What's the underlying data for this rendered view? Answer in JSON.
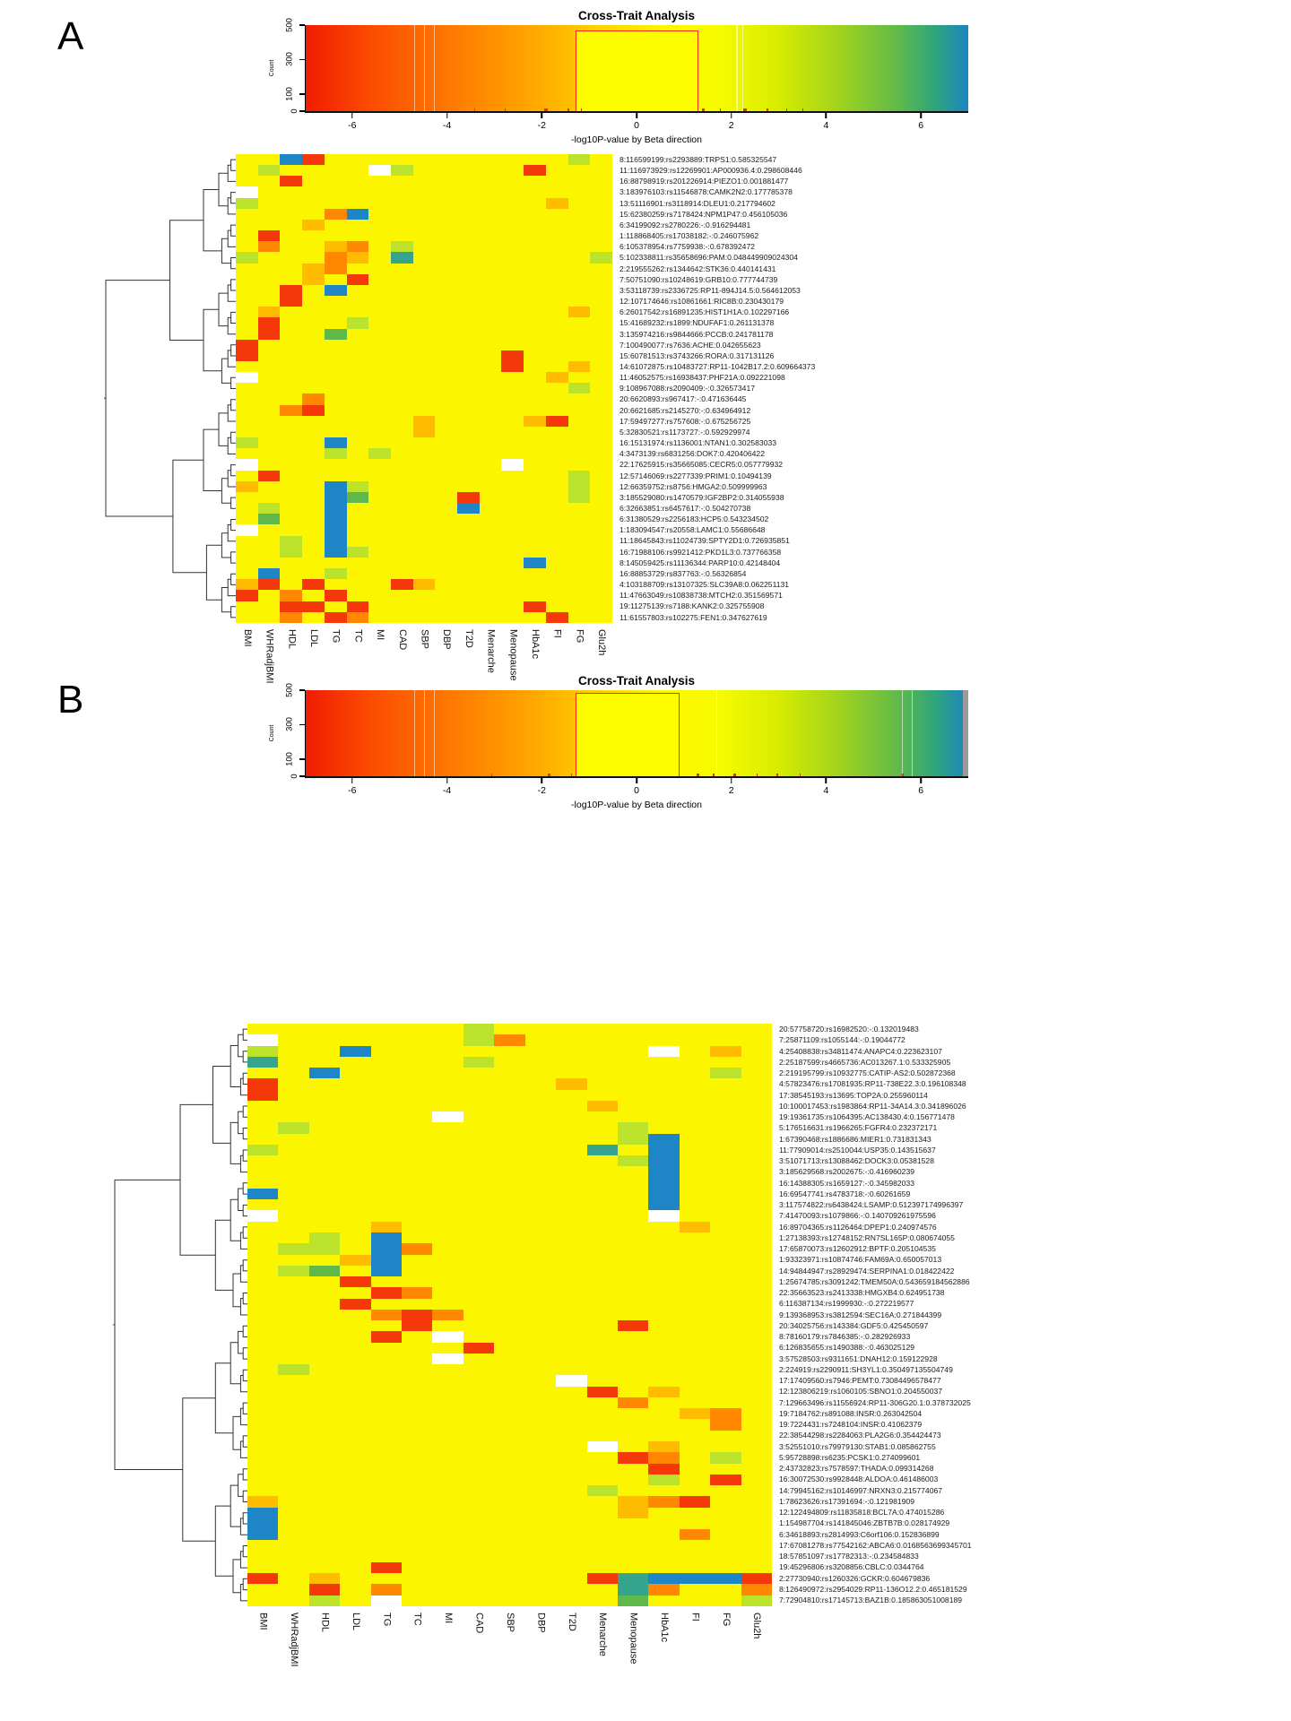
{
  "palette": {
    "Y": "#FBF600",
    "g": "#BCE32C",
    "G": "#5FB94A",
    "t": "#35A48C",
    "B": "#1E86C6",
    "o": "#FFBB00",
    "O": "#FF8800",
    "R": "#F5380A",
    "W": "#FFFFFF"
  },
  "chart_data": [
    {
      "type": "heatmap",
      "panel_label": "A",
      "title": "Cross-Trait Analysis",
      "colorbar": {
        "xlabel": "-log10P-value by Beta direction",
        "ylabel": "Count",
        "yticks": [
          0,
          100,
          300,
          500
        ],
        "xticks": [
          -6,
          -4,
          -2,
          0,
          2,
          4,
          6
        ],
        "xrange": [
          -7,
          7
        ],
        "highlight_box": {
          "x0": -1.3,
          "x1": 1.3,
          "count": 480
        },
        "gradient_hex": [
          "#F01C00",
          "#FF7A00",
          "#FFD400",
          "#FBF600",
          "#D9ED00",
          "#A4D41C",
          "#64BB47",
          "#2FA47C",
          "#1B85C3"
        ]
      },
      "legend_note": "cell colors code -log10P-value by Beta direction: red/orange = negative, yellow = near zero, green/teal/blue = positive, white = missing",
      "columns": [
        "BMI",
        "WHRadjBMI",
        "HDL",
        "LDL",
        "TG",
        "TC",
        "MI",
        "CAD",
        "SBP",
        "DBP",
        "T2D",
        "Menarche",
        "Menopause",
        "HbA1c",
        "FI",
        "FG",
        "Glu2h"
      ],
      "rows": [
        "8:116599199:rs2293889:TRPS1:0.585325547",
        "11:116973929:rs12269901:AP000936.4:0.298608446",
        "16:88798919:rs201226914:PIEZO1:0.001881477",
        "3:183976103:rs11546878:CAMK2N2:0.177785378",
        "13:51116901:rs3118914:DLEU1:0.217794602",
        "15:62380259:rs7178424:NPM1P47:0.456105036",
        "6:34199092:rs2780226:-:0.916294481",
        "1:118868405:rs17038182:-:0.246075962",
        "6:105378954:rs7759938:-:0.678392472",
        "5:102338811:rs35658696:PAM:0.048449909024304",
        "2:219555262:rs1344642:STK36:0.440141431",
        "7:50751090:rs10248619:GRB10:0.777744739",
        "3:53118739:rs2336725:RP11-894J14.5:0.564612053",
        "12:107174646:rs10861661:RIC8B:0.230430179",
        "6:26017542:rs16891235:HIST1H1A:0.102297166",
        "15:41689232:rs1899:NDUFAF1:0.261131378",
        "3:135974216:rs9844666:PCCB:0.241781178",
        "7:100490077:rs7636:ACHE:0.042655623",
        "15:60781513:rs3743266:RORA:0.317131126",
        "14:61072875:rs10483727:RP11-1042B17.2:0.609664373",
        "11:46052575:rs16938437:PHF21A:0.092221098",
        "9:108967088:rs2090409:-:0.326573417",
        "20:6620893:rs967417:-:0.471636445",
        "20:6621685:rs2145270:-:0.634964912",
        "17:59497277:rs757608:-:0.675256725",
        "5:32830521:rs1173727:-:0.592929974",
        "16:15131974:rs1136001:NTAN1:0.302583033",
        "4:3473139:rs6831256:DOK7:0.420406422",
        "22:17625915:rs35665085:CECR5:0.057779932",
        "12:57146069:rs2277339:PRIM1:0.10494139",
        "12:66359752:rs8756:HMGA2:0.509999963",
        "3:185529080:rs1470579:IGF2BP2:0.314055938",
        "6:32663851:rs6457617:-:0.504270738",
        "6:31380529:rs2256183:HCP5:0.543234502",
        "1:183094547:rs20558:LAMC1:0.55686648",
        "11:18645843:rs11024739:SPTY2D1:0.726935851",
        "16:71988106:rs9921412:PKD1L3:0.737766358",
        "8:145059425:rs11136344:PARP10:0.42148404",
        "16:88853729:rs837763:-:0.56326854",
        "4:103188709:rs13107325:SLC39A8:0.062251131",
        "11:47663049:rs10838738:MTCH2:0.351569571",
        "19:11275139:rs7188:KANK2:0.325755908",
        "11:61557803:rs102275:FEN1:0.347627619"
      ],
      "matrix": [
        "YYBRYYYYYYYYYYYgY",
        "YgYYYYWgYYYYYRYYY",
        "YYRYYYYYYYYYYYYYY",
        "WYYYYYYYYYYYYYYYY",
        "gYYYYYYYYYYYYYoYY",
        "YYYYOBYYYYYYYYYYY",
        "YYYoYYYYYYYYYYYYY",
        "YRYYYYYYYYYYYYYYY",
        "YOYYoOYgYYYYYYYYY",
        "gYYYOoYtYYYYYYYYg",
        "YYYoOYYYYYYYYYYYY",
        "YYYoYRYYYYYYYYYYY",
        "YYRYBYYYYYYYYYYYY",
        "YYRYYYYYYYYYYYYYY",
        "YoYYYYYYYYYYYYYoY",
        "YRYYYgYYYYYYYYYYY",
        "YRYYGYYYYYYYYYYYY",
        "RYYYYYYYYYYYYYYYY",
        "RYYYYYYYYYYYRYYYY",
        "YYYYYYYYYYYYRYYoY",
        "WYYYYYYYYYYYYYoYY",
        "YYYYYYYYYYYYYYYgY",
        "YYYOYYYYYYYYYYYYY",
        "YYORYYYYYYYYYYYYY",
        "YYYYYYYYoYYYYoRYY",
        "YYYYYYYYoYYYYYYYY",
        "gYYYBYYYYYYYYYYYY",
        "YYYYgYgYYYYYYYYYY",
        "WYYYYYYYYYYYWYYYY",
        "YRYYYYYYYYYYYYYgY",
        "oYYYBgYYYYYYYYYgY",
        "YYYYBGYYYYRYYYYgY",
        "YgYYBYYYYYBYYYYYY",
        "YGYYBYYYYYYYYYYYY",
        "WYYYBYYYYYYYYYYYY",
        "YYgYBYYYYYYYYYYYY",
        "YYgYBgYYYYYYYYYYY",
        "YYYYYYYYYYYYYBYYY",
        "YBYYgYYYYYYYYYYYY",
        "oRYRYYYRoYYYYYYYY",
        "RYOYRYYYYYYYYYYYY",
        "YYRRYRYYYYYYYRYYY",
        "YYOYROYYYYYYYYRYY"
      ]
    },
    {
      "type": "heatmap",
      "panel_label": "B",
      "title": "Cross-Trait Analysis",
      "colorbar": {
        "xlabel": "-log10P-value by Beta direction",
        "ylabel": "Count",
        "yticks": [
          0,
          100,
          300,
          500
        ],
        "xticks": [
          -6,
          -4,
          -2,
          0,
          2,
          4,
          6
        ],
        "xrange": [
          -7,
          7
        ],
        "highlight_box": {
          "x0": -1.3,
          "x1": 0.9,
          "count": 530
        },
        "gradient_hex": [
          "#F01C00",
          "#FF7A00",
          "#FFD400",
          "#FBF600",
          "#D9ED00",
          "#A4D41C",
          "#64BB47",
          "#2FA47C",
          "#1B85C3"
        ]
      },
      "legend_note": "cell colors code -log10P-value by Beta direction: red/orange = negative, yellow = near zero, green/teal/blue = positive, white = missing",
      "columns": [
        "BMI",
        "WHRadjBMI",
        "HDL",
        "LDL",
        "TG",
        "TC",
        "MI",
        "CAD",
        "SBP",
        "DBP",
        "T2D",
        "Menarche",
        "Menopause",
        "HbA1c",
        "FI",
        "FG",
        "Glu2h"
      ],
      "rows": [
        "20:57758720:rs16982520:-:0.132019483",
        "7:25871109:rs1055144:-:0.19044772",
        "4:25408838:rs34811474:ANAPC4:0.223623107",
        "2:25187599:rs4665736:AC013267.1:0.533325905",
        "2:219195799:rs10932775:CATIP-AS2:0.502872368",
        "4:57823476:rs17081935:RP11-738E22.3:0.196108348",
        "17:38545193:rs13695:TOP2A:0.255960114",
        "10:100017453:rs1983864:RP11-34A14.3:0.341896026",
        "19:19361735:rs1064395:AC138430.4:0.156771478",
        "5:176516631:rs1966265:FGFR4:0.232372171",
        "1:67390468:rs1886686:MIER1:0.731831343",
        "11:77909014:rs2510044:USP35:0.143515637",
        "3:51071713:rs13088462:DOCK3:0.05381528",
        "3:185629568:rs2002675:-:0.416960239",
        "16:14388305:rs1659127:-:0.345982033",
        "16:69547741:rs4783718:-:0.60261659",
        "3:117574822:rs6438424:LSAMP:0.512397174996397",
        "7:41470093:rs1079866:-:0.140709261975596",
        "16:89704365:rs1126464:DPEP1:0.240974576",
        "1:27138393:rs12748152:RN7SL165P:0.080674055",
        "17:65870073:rs12602912:BPTF:0.205104535",
        "1:93323971:rs10874746:FAM69A:0.650057013",
        "14:94844947:rs28929474:SERPINA1:0.018422422",
        "1:25674785:rs3091242:TMEM50A:0.543659184562886",
        "22:35663523:rs2413338:HMGXB4:0.624951738",
        "6:116387134:rs1999930:-:0.272219577",
        "9:139368953:rs3812594:SEC16A:0.271844399",
        "20:34025756:rs143384:GDF5:0.425450597",
        "8:78160179:rs7846385:-:0.282926933",
        "6:126835655:rs1490388:-:0.463025129",
        "3:57528503:rs9311651:DNAH12:0.159122928",
        "2:224919:rs2290911:SH3YL1:0.350497135504749",
        "17:17409560:rs7946:PEMT:0.73084496578477",
        "12:123806219:rs1060105:SBNO1:0.204550037",
        "7:129663496:rs11556924:RP11-306G20.1:0.378732025",
        "19:7184762:rs891088:INSR:0.263042504",
        "19:7224431:rs7248104:INSR:0.41062379",
        "22:38544298:rs2284063:PLA2G6:0.354424473",
        "3:52551010:rs79979130:STAB1:0.085862755",
        "5:95728898:rs6235:PCSK1:0.274099601",
        "2:43732823:rs7578597:THADA:0.099314268",
        "16:30072530:rs9928448:ALDOA:0.461486003",
        "14:79945162:rs10146997:NRXN3:0.215774067",
        "1:78623626:rs17391694:-:0.121981909",
        "12:122494809:rs11835818:BCL7A:0.474015286",
        "1:154987704:rs141845046:ZBTB7B:0.028174929",
        "6:34618893:rs2814993:C6orf106:0.152836899",
        "17:67081278:rs77542162:ABCA6:0.0168563699345701",
        "18:57851097:rs17782313:-:0.234584833",
        "19:45296806:rs3208856:CBLC:0.0344764",
        "2:27730940:rs1260326:GCKR:0.604679836",
        "8:126490972:rs2954029:RP11-136O12.2:0.465181529",
        "7:72904810:rs17145713:BAZ1B:0.185863051008189"
      ],
      "matrix": [
        "YYYYYYYgYYYYYYYYY",
        "WYYYYYYgOYYYYYYYY",
        "gYYBYYYYYYYYYWYoY",
        "tYYYYYYgYYYYYYYYY",
        "YYBYYYYYYYYYYYYgY",
        "RYYYYYYYYYoYYYYYY",
        "RYYYYYYYYYYYYYYYY",
        "YYYYYYYYYYYoYYYYY",
        "YYYYYYWYYYYYYYYYY",
        "YgYYYYYYYYYYgYYYY",
        "YYYYYYYYYYYYgBYYY",
        "gYYYYYYYYYYtYBYYY",
        "YYYYYYYYYYYYgBYYY",
        "YYYYYYYYYYYYYBYYY",
        "YYYYYYYYYYYYYBYYY",
        "BYYYYYYYYYYYYBYYY",
        "YYYYYYYYYYYYYBYYY",
        "WYYYYYYYYYYYYWYYY",
        "YYYYoYYYYYYYYYoYY",
        "YYgYBYYYYYYYYYYYY",
        "YggYBOYYYYYYYYYYY",
        "YYYoBYYYYYYYYYYYY",
        "YgGYBYYYYYYYYYYYY",
        "YYYRYYYYYYYYYYYYY",
        "YYYYROYYYYYYYYYYY",
        "YYYRYYYYYYYYYYYYY",
        "YYYYOROYYYYYYYYYY",
        "YYYYYRYYYYYYRYYYY",
        "YYYYRYWYYYYYYYYYY",
        "YYYYYYYRYYYYYYYYY",
        "YYYYYYWYYYYYYYYYY",
        "YgYYYYYYYYYYYYYYY",
        "YYYYYYYYYYWYYYYYY",
        "YYYYYYYYYYYRYoYYY",
        "YYYYYYYYYYYYOYYYY",
        "YYYYYYYYYYYYYYoOY",
        "YYYYYYYYYYYYYYYOY",
        "YYYYYYYYYYYYYYYYY",
        "YYYYYYYYYYYWYoYYY",
        "YYYYYYYYYYYYROYgY",
        "YYYYYYYYYYYYYRYYY",
        "YYYYYYYYYYYYYgYRY",
        "YYYYYYYYYYYgYYYYY",
        "oYYYYYYYYYYYoORYY",
        "BYYYYYYYYYYYoYYYY",
        "BYYYYYYYYYYYYYYYY",
        "BYYYYYYYYYYYYYOYY",
        "YYYYYYYYYYYYYYYYY",
        "YYYYYYYYYYYYYYYYY",
        "YYYYRYYYYYYYYYYYY",
        "RYoYYYYYYYYRtBBBR",
        "YYRYOYYYYYYYtOYYO",
        "YYgYWYYYYYYYGYYYg"
      ]
    }
  ]
}
